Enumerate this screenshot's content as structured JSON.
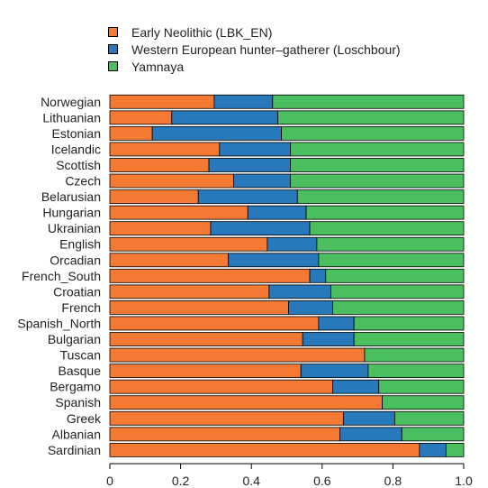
{
  "chart_data": {
    "type": "bar",
    "orientation": "horizontal",
    "stacked": true,
    "categories": [
      "Norwegian",
      "Lithuanian",
      "Estonian",
      "Icelandic",
      "Scottish",
      "Czech",
      "Belarusian",
      "Hungarian",
      "Ukrainian",
      "English",
      "Orcadian",
      "French_South",
      "Croatian",
      "French",
      "Spanish_North",
      "Bulgarian",
      "Tuscan",
      "Basque",
      "Bergamo",
      "Spanish",
      "Greek",
      "Albanian",
      "Sardinian"
    ],
    "series": [
      {
        "name": "Early Neolithic (LBK_EN)",
        "color": "#f47a34",
        "values": [
          0.295,
          0.175,
          0.12,
          0.31,
          0.28,
          0.35,
          0.25,
          0.39,
          0.285,
          0.445,
          0.335,
          0.565,
          0.45,
          0.505,
          0.59,
          0.545,
          0.72,
          0.54,
          0.63,
          0.77,
          0.66,
          0.65,
          0.875
        ]
      },
      {
        "name": "Western European hunter–gatherer (Loschbour)",
        "color": "#2779bb",
        "values": [
          0.165,
          0.3,
          0.365,
          0.2,
          0.23,
          0.16,
          0.28,
          0.165,
          0.28,
          0.14,
          0.255,
          0.045,
          0.175,
          0.125,
          0.1,
          0.145,
          0.0,
          0.19,
          0.13,
          0.0,
          0.145,
          0.175,
          0.075
        ]
      },
      {
        "name": "Yamnaya",
        "color": "#4bbe60",
        "values": [
          0.54,
          0.525,
          0.515,
          0.49,
          0.49,
          0.49,
          0.47,
          0.445,
          0.435,
          0.415,
          0.41,
          0.39,
          0.375,
          0.37,
          0.31,
          0.31,
          0.28,
          0.27,
          0.24,
          0.23,
          0.195,
          0.175,
          0.05
        ]
      }
    ],
    "xlim": [
      0,
      1
    ],
    "xticks": [
      "0",
      "0.2",
      "0.4",
      "0.6",
      "0.8",
      "1.0"
    ],
    "xlabel": "",
    "ylabel": "",
    "title": "",
    "grid": false,
    "legend_position": "top"
  }
}
